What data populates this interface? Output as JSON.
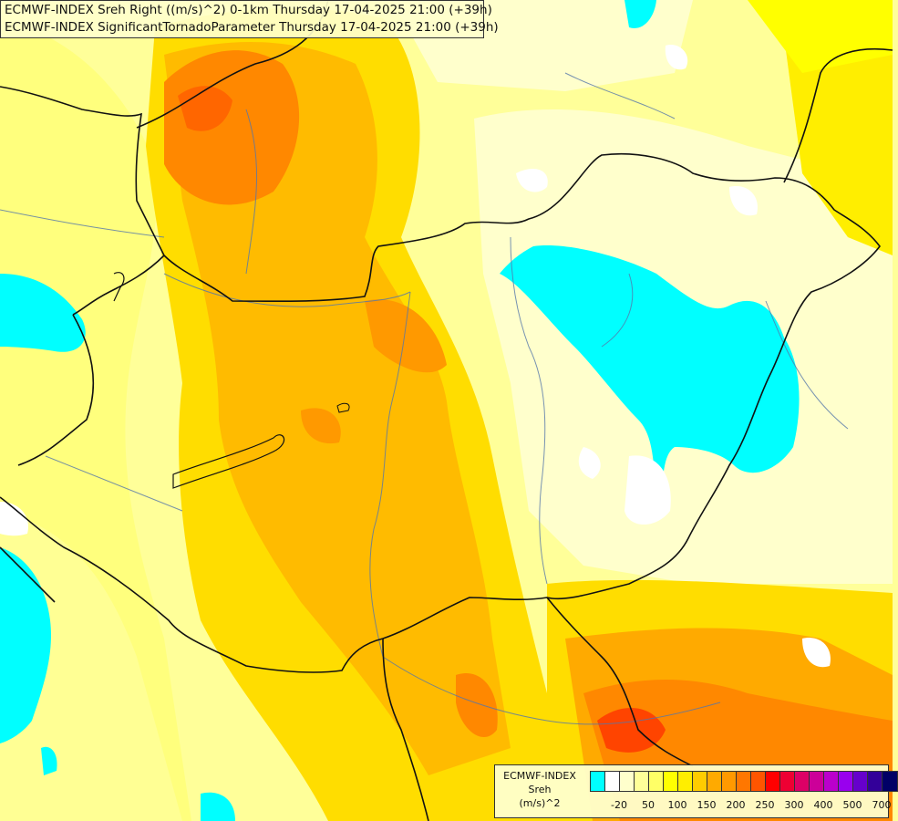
{
  "title": {
    "line1": "ECMWF-INDEX Sreh Right ((m/s)^2) 0-1km Thursday 17-04-2025 21:00 (+39h)",
    "line2": "ECMWF-INDEX SignificantTornadoParameter Thursday 17-04-2025 21:00 (+39h)"
  },
  "legend": {
    "model": "ECMWF-INDEX",
    "variable": "Sreh",
    "unit": "(m/s)^2",
    "colors": [
      "#00ffff",
      "#ffffff",
      "#ffffcc",
      "#ffff99",
      "#ffff66",
      "#ffff00",
      "#ffee00",
      "#ffcc00",
      "#ffaa00",
      "#ff9900",
      "#ff7700",
      "#ff5500",
      "#ff0000",
      "#ee0033",
      "#dd0066",
      "#cc0099",
      "#bb00cc",
      "#9900ee",
      "#6600cc",
      "#330099",
      "#000066"
    ],
    "tick_labels": [
      "-20",
      "50",
      "100",
      "150",
      "200",
      "250",
      "300",
      "400",
      "500",
      "700"
    ]
  }
}
